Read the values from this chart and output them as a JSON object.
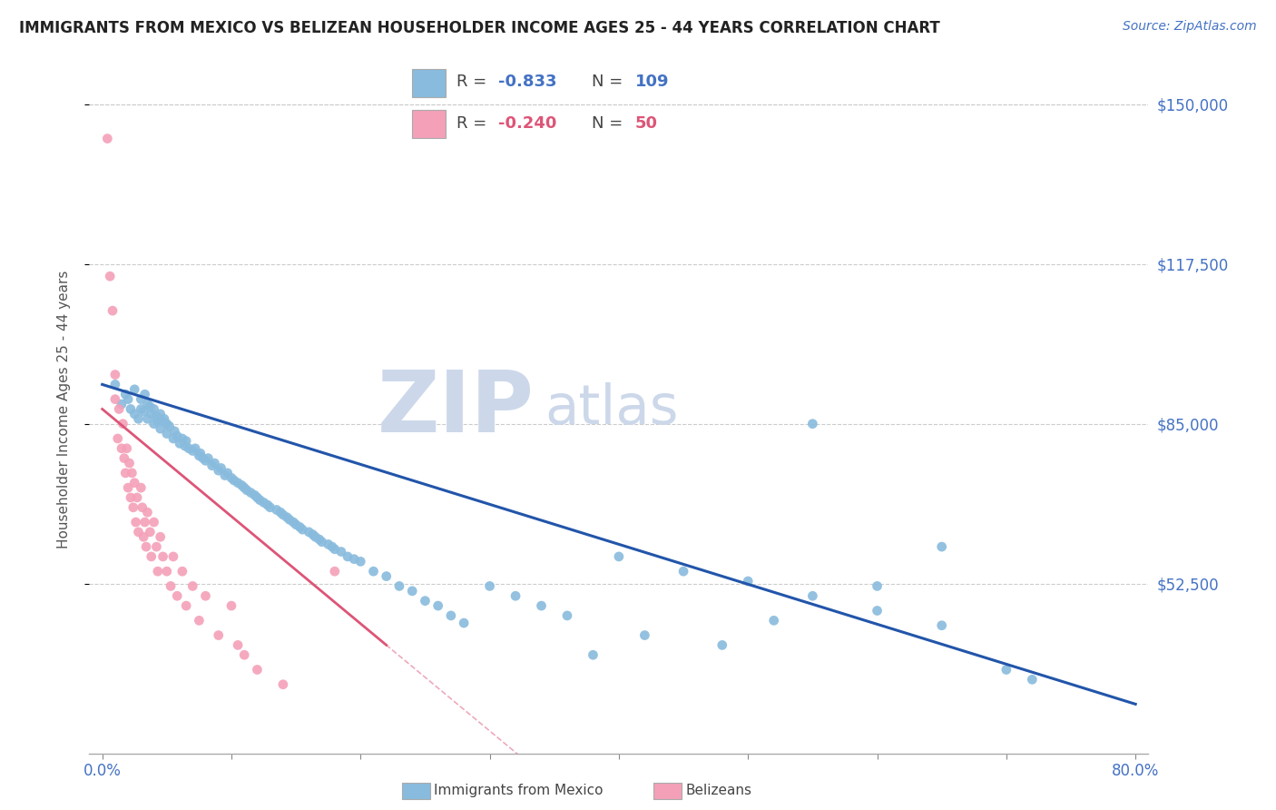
{
  "title": "IMMIGRANTS FROM MEXICO VS BELIZEAN HOUSEHOLDER INCOME AGES 25 - 44 YEARS CORRELATION CHART",
  "source_text": "Source: ZipAtlas.com",
  "ylabel": "Householder Income Ages 25 - 44 years",
  "xmin": 0.0,
  "xmax": 0.8,
  "ymin": 18000,
  "ymax": 158000,
  "yticks": [
    52500,
    85000,
    117500,
    150000
  ],
  "ytick_labels": [
    "$52,500",
    "$85,000",
    "$117,500",
    "$150,000"
  ],
  "xticks": [
    0.0,
    0.1,
    0.2,
    0.3,
    0.4,
    0.5,
    0.6,
    0.7,
    0.8
  ],
  "xtick_labels_show": [
    "0.0%",
    "80.0%"
  ],
  "legend1_R": "-0.833",
  "legend1_N": "109",
  "legend2_R": "-0.240",
  "legend2_N": "50",
  "blue_color": "#88bbdd",
  "pink_color": "#f4a0b8",
  "trend_blue": "#2255aa",
  "trend_pink": "#dd5577",
  "watermark_zip": "ZIP",
  "watermark_atlas": "atlas",
  "watermark_color": "#ccd8ea",
  "title_color": "#222222",
  "axis_label_color": "#555555",
  "tick_color": "#4472C4",
  "grid_color": "#cccccc",
  "mexico_scatter_x": [
    0.01,
    0.015,
    0.018,
    0.02,
    0.022,
    0.025,
    0.025,
    0.028,
    0.03,
    0.03,
    0.032,
    0.033,
    0.035,
    0.035,
    0.037,
    0.038,
    0.04,
    0.04,
    0.042,
    0.043,
    0.045,
    0.045,
    0.047,
    0.048,
    0.05,
    0.05,
    0.052,
    0.055,
    0.056,
    0.058,
    0.06,
    0.062,
    0.064,
    0.065,
    0.067,
    0.07,
    0.072,
    0.075,
    0.076,
    0.078,
    0.08,
    0.082,
    0.085,
    0.087,
    0.09,
    0.092,
    0.095,
    0.097,
    0.1,
    0.102,
    0.105,
    0.108,
    0.11,
    0.112,
    0.115,
    0.118,
    0.12,
    0.122,
    0.125,
    0.128,
    0.13,
    0.135,
    0.138,
    0.14,
    0.143,
    0.145,
    0.148,
    0.15,
    0.153,
    0.155,
    0.16,
    0.163,
    0.165,
    0.168,
    0.17,
    0.175,
    0.178,
    0.18,
    0.185,
    0.19,
    0.195,
    0.2,
    0.21,
    0.22,
    0.23,
    0.24,
    0.25,
    0.26,
    0.27,
    0.28,
    0.3,
    0.32,
    0.34,
    0.36,
    0.4,
    0.45,
    0.5,
    0.55,
    0.6,
    0.65,
    0.55,
    0.6,
    0.65,
    0.52,
    0.48,
    0.42,
    0.38,
    0.7,
    0.72
  ],
  "mexico_scatter_y": [
    93000,
    89000,
    91000,
    90000,
    88000,
    87000,
    92000,
    86000,
    88000,
    90000,
    87500,
    91000,
    86000,
    89000,
    88500,
    87000,
    85000,
    88000,
    86500,
    85500,
    84000,
    87000,
    85500,
    86000,
    83000,
    85000,
    84500,
    82000,
    83500,
    82500,
    81000,
    82000,
    80500,
    81500,
    80000,
    79500,
    80000,
    78500,
    79000,
    78000,
    77500,
    78000,
    76500,
    77000,
    75500,
    76000,
    74500,
    75000,
    74000,
    73500,
    73000,
    72500,
    72000,
    71500,
    71000,
    70500,
    70000,
    69500,
    69000,
    68500,
    68000,
    67500,
    67000,
    66500,
    66000,
    65500,
    65000,
    64500,
    64000,
    63500,
    63000,
    62500,
    62000,
    61500,
    61000,
    60500,
    60000,
    59500,
    59000,
    58000,
    57500,
    57000,
    55000,
    54000,
    52000,
    51000,
    49000,
    48000,
    46000,
    44500,
    52000,
    50000,
    48000,
    46000,
    58000,
    55000,
    53000,
    50000,
    47000,
    44000,
    85000,
    52000,
    60000,
    45000,
    40000,
    42000,
    38000,
    35000,
    33000
  ],
  "belize_scatter_x": [
    0.004,
    0.006,
    0.008,
    0.01,
    0.01,
    0.012,
    0.013,
    0.015,
    0.016,
    0.017,
    0.018,
    0.019,
    0.02,
    0.021,
    0.022,
    0.023,
    0.024,
    0.025,
    0.026,
    0.027,
    0.028,
    0.03,
    0.031,
    0.032,
    0.033,
    0.034,
    0.035,
    0.037,
    0.038,
    0.04,
    0.042,
    0.043,
    0.045,
    0.047,
    0.05,
    0.053,
    0.055,
    0.058,
    0.062,
    0.065,
    0.07,
    0.075,
    0.08,
    0.09,
    0.1,
    0.105,
    0.11,
    0.12,
    0.14,
    0.18
  ],
  "belize_scatter_y": [
    143000,
    115000,
    108000,
    95000,
    90000,
    82000,
    88000,
    80000,
    85000,
    78000,
    75000,
    80000,
    72000,
    77000,
    70000,
    75000,
    68000,
    73000,
    65000,
    70000,
    63000,
    72000,
    68000,
    62000,
    65000,
    60000,
    67000,
    63000,
    58000,
    65000,
    60000,
    55000,
    62000,
    58000,
    55000,
    52000,
    58000,
    50000,
    55000,
    48000,
    52000,
    45000,
    50000,
    42000,
    48000,
    40000,
    38000,
    35000,
    32000,
    55000
  ]
}
